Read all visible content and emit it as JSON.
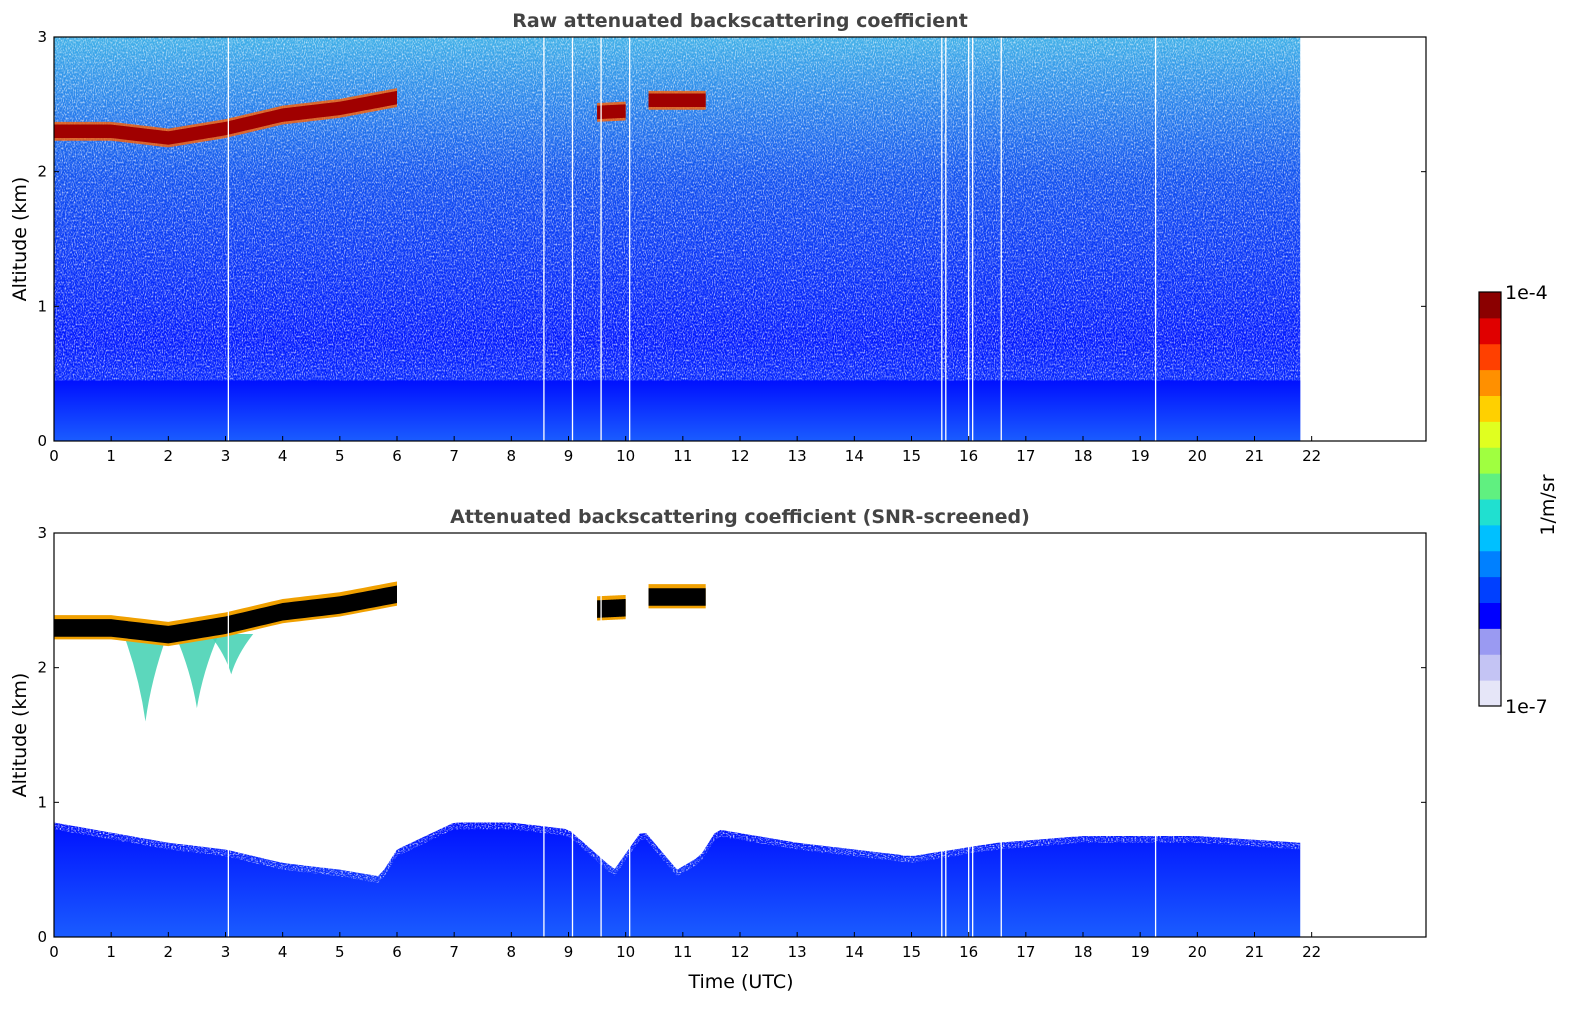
{
  "colors": {
    "colormap": [
      "#e6e6f8",
      "#c4c4f4",
      "#9a9af2",
      "#0000ff",
      "#0040ff",
      "#0080ff",
      "#00c0ff",
      "#20e0d0",
      "#60f080",
      "#a0ff40",
      "#e0ff20",
      "#ffd000",
      "#ff9000",
      "#ff4000",
      "#e00000",
      "#8b0000"
    ],
    "cloud_core": "#000000"
  },
  "colorbar": {
    "max_label": "1e-4",
    "min_label": "1e-7",
    "unit_label": "1/m/sr",
    "scale": "log"
  },
  "chart_data": [
    {
      "type": "heatmap",
      "title": "Raw attenuated backscattering coefficient",
      "xlabel": "",
      "ylabel": "Altitude (km)",
      "xlim": [
        0,
        24
      ],
      "ylim": [
        0,
        3
      ],
      "x_ticks": [
        "0",
        "1",
        "2",
        "3",
        "4",
        "5",
        "6",
        "7",
        "8",
        "9",
        "10",
        "11",
        "12",
        "13",
        "14",
        "15",
        "16",
        "17",
        "18",
        "19",
        "20",
        "21",
        "22"
      ],
      "y_ticks": [
        "0",
        "1",
        "2",
        "3"
      ],
      "data_end_hour": 21.8,
      "gap_hours": [
        3.05,
        8.57,
        9.07,
        9.57,
        10.07,
        15.53,
        15.6,
        16.0,
        16.07,
        16.57,
        19.27
      ],
      "cloud_layer": {
        "segments": [
          {
            "start": 0.0,
            "end": 6.0,
            "altitude_km": [
              [
                0.0,
                2.3
              ],
              [
                1.0,
                2.3
              ],
              [
                2.0,
                2.25
              ],
              [
                3.0,
                2.32
              ],
              [
                4.0,
                2.42
              ],
              [
                5.0,
                2.47
              ],
              [
                6.0,
                2.55
              ]
            ]
          },
          {
            "start": 9.5,
            "end": 10.0,
            "altitude_km": [
              [
                9.5,
                2.44
              ],
              [
                10.0,
                2.45
              ]
            ]
          },
          {
            "start": 10.4,
            "end": 11.4,
            "altitude_km": [
              [
                10.4,
                2.53
              ],
              [
                11.4,
                2.53
              ]
            ]
          }
        ]
      },
      "boundary_layer_top_km": 0.45
    },
    {
      "type": "heatmap",
      "title": "Attenuated backscattering coefficient (SNR-screened)",
      "xlabel": "Time (UTC)",
      "ylabel": "Altitude (km)",
      "xlim": [
        0,
        24
      ],
      "ylim": [
        0,
        3
      ],
      "x_ticks": [
        "0",
        "1",
        "2",
        "3",
        "4",
        "5",
        "6",
        "7",
        "8",
        "9",
        "10",
        "11",
        "12",
        "13",
        "14",
        "15",
        "16",
        "17",
        "18",
        "19",
        "20",
        "21",
        "22"
      ],
      "y_ticks": [
        "0",
        "1",
        "2",
        "3"
      ],
      "data_end_hour": 21.8,
      "gap_hours": [
        3.05,
        8.57,
        9.07,
        9.57,
        10.07,
        15.53,
        15.6,
        16.0,
        16.07,
        16.57,
        19.27
      ],
      "boundary_layer_top_km": [
        [
          0.0,
          0.85
        ],
        [
          2.0,
          0.7
        ],
        [
          3.0,
          0.65
        ],
        [
          4.0,
          0.55
        ],
        [
          5.0,
          0.5
        ],
        [
          5.7,
          0.45
        ],
        [
          6.0,
          0.65
        ],
        [
          7.0,
          0.85
        ],
        [
          8.0,
          0.85
        ],
        [
          9.0,
          0.8
        ],
        [
          9.8,
          0.5
        ],
        [
          10.3,
          0.8
        ],
        [
          10.9,
          0.5
        ],
        [
          11.3,
          0.6
        ],
        [
          11.6,
          0.8
        ],
        [
          13.0,
          0.7
        ],
        [
          15.0,
          0.6
        ],
        [
          16.5,
          0.7
        ],
        [
          18.0,
          0.75
        ],
        [
          20.0,
          0.75
        ],
        [
          21.8,
          0.7
        ]
      ],
      "virga_plumes": [
        {
          "hour": 1.6,
          "bottom_km": 1.6
        },
        {
          "hour": 2.5,
          "bottom_km": 1.7
        },
        {
          "hour": 3.1,
          "bottom_km": 1.95
        }
      ]
    }
  ]
}
